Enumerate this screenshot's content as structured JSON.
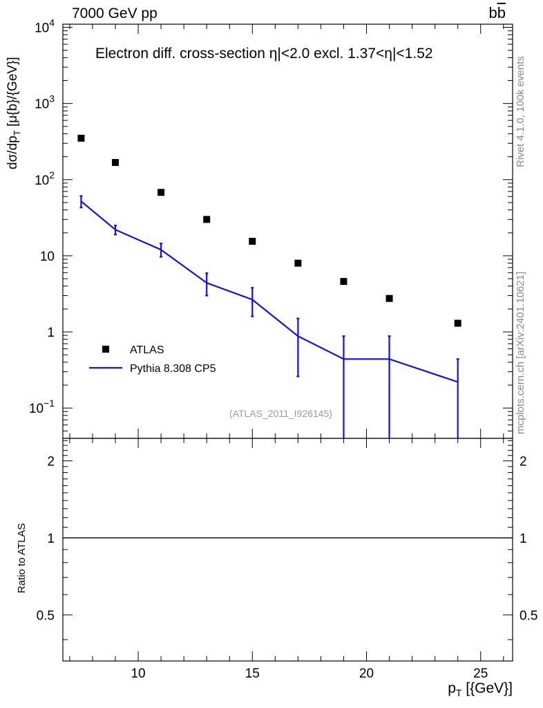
{
  "header": {
    "left": "7000 GeV pp",
    "right": "bb",
    "right_overbar": "b"
  },
  "panel_title": "Electron diff. cross-section η|<2.0 excl. 1.37<η|<1.52",
  "side_labels": {
    "rivet": "Rivet 4.1.0,  100k events",
    "mcplots": "mcplots.cern.ch [arXiv:2401.10621]"
  },
  "analysis_id": "(ATLAS_2011_I926145)",
  "chart_data": [
    {
      "type": "scatter",
      "ylabel": "dσ/dp_T [μ{b}/{GeV}]",
      "xlabel": "p_T [{GeV}]",
      "xlim": [
        6.7,
        26.4
      ],
      "ylim": [
        0.04,
        11000
      ],
      "yscale": "log",
      "y_ticks": [
        {
          "value": 0.1,
          "label": "10^-1"
        },
        {
          "value": 1,
          "label": "1"
        },
        {
          "value": 10,
          "label": "10"
        },
        {
          "value": 100,
          "label": "10^2"
        },
        {
          "value": 1000,
          "label": "10^3"
        },
        {
          "value": 10000,
          "label": "10^4"
        }
      ],
      "legend_position": "bottom-left",
      "series": [
        {
          "name": "ATLAS",
          "marker": "square",
          "color": "#000000",
          "x": [
            7.5,
            9,
            11,
            13,
            15,
            17,
            19,
            21,
            24
          ],
          "y": [
            350,
            168,
            68,
            30,
            15.5,
            8.0,
            4.6,
            2.75,
            1.3
          ]
        },
        {
          "name": "Pythia 8.308 CP5",
          "marker": "line",
          "color": "#1010e0",
          "x": [
            7.5,
            9,
            11,
            13,
            15,
            17,
            19,
            21,
            24
          ],
          "y": [
            52,
            22,
            12,
            4.4,
            2.65,
            0.88,
            0.44,
            0.44,
            0.22
          ],
          "y_err_low": [
            43,
            19,
            9.7,
            3.0,
            1.6,
            0.26,
            0.0,
            0.0,
            0.0
          ],
          "y_err_high": [
            61,
            25,
            14.5,
            5.9,
            3.8,
            1.5,
            0.88,
            0.88,
            0.44
          ]
        }
      ]
    },
    {
      "type": "line",
      "ylabel": "Ratio to ATLAS",
      "xlabel": "p_T [{GeV}]",
      "xlim": [
        6.7,
        26.4
      ],
      "ylim": [
        0.33,
        2.45
      ],
      "yscale": "log",
      "y_ticks": [
        {
          "value": 0.5,
          "label": "0.5"
        },
        {
          "value": 1,
          "label": "1"
        },
        {
          "value": 2,
          "label": "2"
        }
      ],
      "x_ticks": [
        {
          "value": 10,
          "label": "10"
        },
        {
          "value": 15,
          "label": "15"
        },
        {
          "value": 20,
          "label": "20"
        },
        {
          "value": 25,
          "label": "25"
        }
      ],
      "reference_line": 1
    }
  ]
}
